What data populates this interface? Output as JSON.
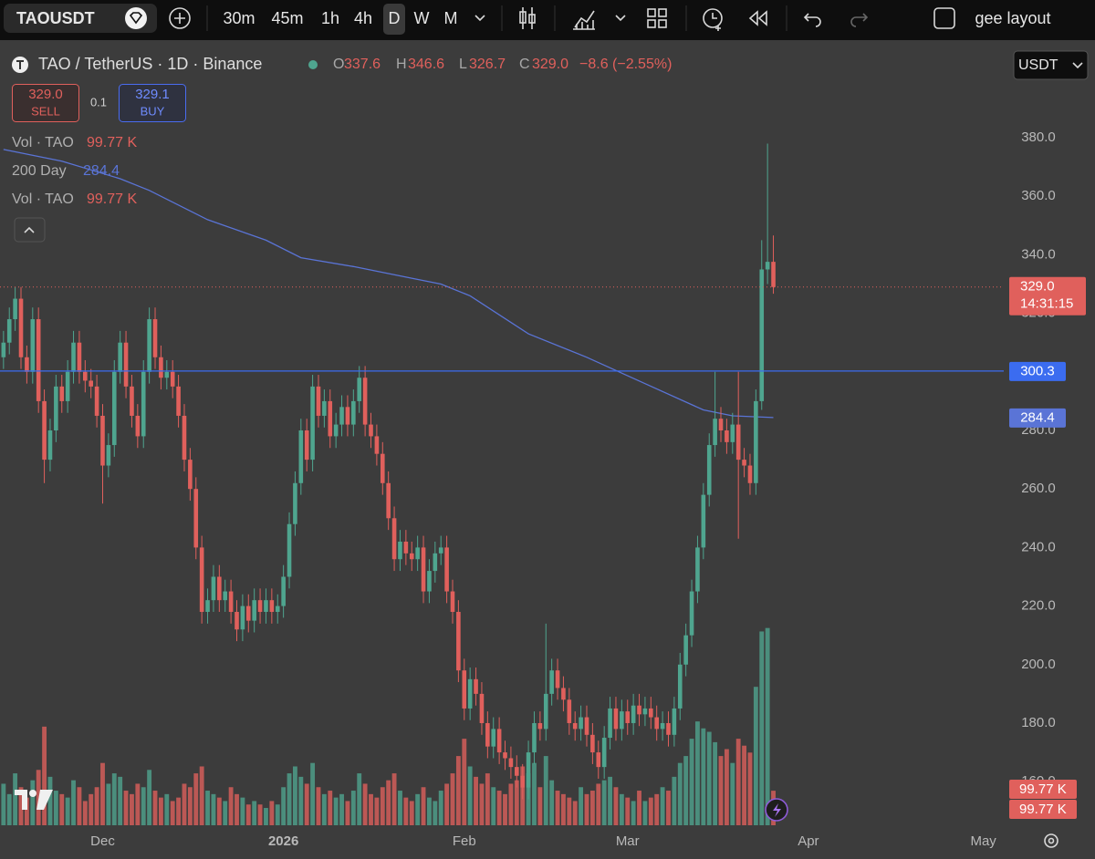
{
  "toolbar": {
    "symbol": "TAOUSDT",
    "intervals": [
      "30m",
      "45m",
      "1h",
      "4h",
      "D",
      "W",
      "M"
    ],
    "layout": "gee layout"
  },
  "header": {
    "title": "TAO / TetherUS · 1D · Binance",
    "o_label": "O",
    "h_label": "H",
    "l_label": "L",
    "c_label": "C",
    "change": "−8.6 (−2.55%)",
    "sell_price": "329.0",
    "sell": "SELL",
    "quantity": "0.1",
    "buy_price": "329.1",
    "buy": "BUY",
    "currency": "USDT"
  },
  "legend": [
    {
      "name": "Vol · TAO",
      "value": "99.77 K"
    },
    {
      "name": "Vol · TAO",
      "value": "99.77 K"
    }
  ],
  "chart_data": {
    "type": "candlestick",
    "up_color": "#4fa58f",
    "down_color": "#e0605c",
    "open": [
      305,
      310,
      318,
      325,
      305,
      300,
      318,
      290,
      270,
      280,
      295,
      290,
      300,
      310,
      300,
      297,
      295,
      285,
      268,
      275,
      300,
      310,
      295,
      285,
      278,
      300,
      318,
      305,
      298,
      300,
      295,
      285,
      270,
      260,
      240,
      218,
      222,
      230,
      222,
      225,
      218,
      212,
      220,
      215,
      222,
      218,
      222,
      218,
      220,
      230,
      248,
      262,
      280,
      270,
      295,
      285,
      290,
      278,
      282,
      288,
      282,
      290,
      298,
      282,
      278,
      272,
      262,
      250,
      236,
      242,
      238,
      236,
      240,
      225,
      232,
      238,
      240,
      225,
      218,
      198,
      185,
      195,
      190,
      180,
      172,
      178,
      170,
      168,
      165,
      162,
      158,
      170,
      180,
      178,
      190,
      198,
      192,
      188,
      180,
      178,
      182,
      176,
      170,
      165,
      175,
      185,
      178,
      184,
      180,
      186,
      183,
      185,
      182,
      178,
      180,
      176,
      185,
      200,
      210,
      225,
      240,
      258,
      275,
      284,
      280,
      276,
      282,
      270,
      268,
      262,
      290,
      335,
      337.6
    ],
    "high": [
      314,
      322,
      329,
      329,
      309,
      322,
      322,
      294,
      284,
      299,
      299,
      304,
      314,
      314,
      304,
      301,
      299,
      289,
      279,
      304,
      314,
      314,
      299,
      289,
      304,
      322,
      322,
      309,
      304,
      304,
      299,
      289,
      274,
      264,
      244,
      226,
      234,
      234,
      229,
      229,
      222,
      224,
      224,
      226,
      226,
      226,
      226,
      224,
      234,
      252,
      266,
      284,
      284,
      299,
      299,
      294,
      294,
      286,
      292,
      292,
      294,
      302,
      302,
      286,
      282,
      276,
      266,
      254,
      246,
      246,
      242,
      244,
      244,
      236,
      242,
      244,
      244,
      229,
      222,
      202,
      199,
      199,
      194,
      184,
      182,
      182,
      174,
      172,
      169,
      166,
      174,
      184,
      184,
      214,
      202,
      202,
      196,
      192,
      184,
      186,
      186,
      180,
      174,
      179,
      189,
      189,
      188,
      188,
      190,
      190,
      189,
      189,
      186,
      184,
      184,
      189,
      204,
      214,
      229,
      244,
      262,
      279,
      300,
      288,
      284,
      286,
      300,
      274,
      272,
      294,
      345,
      378,
      346.6
    ],
    "low": [
      301,
      306,
      314,
      301,
      296,
      296,
      286,
      262,
      266,
      276,
      286,
      286,
      296,
      296,
      293,
      291,
      281,
      255,
      264,
      271,
      296,
      291,
      281,
      274,
      274,
      296,
      301,
      294,
      294,
      291,
      281,
      266,
      256,
      236,
      214,
      214,
      218,
      218,
      218,
      214,
      208,
      208,
      211,
      211,
      214,
      214,
      214,
      214,
      216,
      226,
      244,
      258,
      266,
      266,
      281,
      281,
      274,
      274,
      278,
      278,
      278,
      286,
      278,
      274,
      268,
      258,
      246,
      232,
      232,
      234,
      232,
      232,
      221,
      221,
      228,
      234,
      221,
      214,
      194,
      181,
      181,
      186,
      176,
      168,
      168,
      166,
      164,
      161,
      158,
      154,
      154,
      166,
      174,
      174,
      186,
      188,
      184,
      176,
      174,
      174,
      172,
      166,
      161,
      161,
      171,
      174,
      174,
      176,
      176,
      179,
      179,
      178,
      174,
      174,
      172,
      172,
      181,
      196,
      206,
      221,
      236,
      254,
      271,
      276,
      272,
      272,
      243,
      264,
      258,
      258,
      287,
      330,
      326.7
    ],
    "close": [
      310,
      318,
      325,
      305,
      300,
      318,
      290,
      270,
      280,
      295,
      290,
      300,
      310,
      300,
      297,
      295,
      285,
      268,
      275,
      300,
      310,
      295,
      285,
      278,
      300,
      318,
      305,
      298,
      300,
      295,
      285,
      270,
      260,
      240,
      218,
      222,
      230,
      222,
      225,
      218,
      212,
      220,
      215,
      222,
      218,
      222,
      218,
      220,
      230,
      248,
      262,
      280,
      270,
      295,
      285,
      290,
      278,
      282,
      288,
      282,
      290,
      298,
      282,
      278,
      272,
      262,
      250,
      236,
      242,
      238,
      236,
      240,
      225,
      232,
      238,
      240,
      225,
      218,
      198,
      185,
      195,
      190,
      180,
      172,
      178,
      170,
      168,
      165,
      162,
      158,
      170,
      180,
      178,
      190,
      198,
      192,
      188,
      180,
      178,
      182,
      176,
      170,
      165,
      175,
      185,
      178,
      184,
      180,
      186,
      183,
      185,
      182,
      178,
      180,
      176,
      185,
      200,
      210,
      225,
      240,
      258,
      275,
      284,
      280,
      276,
      282,
      270,
      268,
      262,
      290,
      335,
      337.6,
      329
    ],
    "volume": [
      120000,
      90000,
      150000,
      110000,
      80000,
      130000,
      160000,
      285000,
      140000,
      100000,
      90000,
      80000,
      130000,
      110000,
      70000,
      90000,
      110000,
      180000,
      120000,
      150000,
      140000,
      100000,
      90000,
      120000,
      110000,
      160000,
      100000,
      80000,
      90000,
      70000,
      80000,
      120000,
      110000,
      150000,
      170000,
      100000,
      90000,
      80000,
      70000,
      110000,
      90000,
      80000,
      60000,
      70000,
      60000,
      50000,
      70000,
      60000,
      110000,
      150000,
      170000,
      140000,
      120000,
      180000,
      110000,
      90000,
      100000,
      80000,
      90000,
      70000,
      100000,
      150000,
      120000,
      90000,
      80000,
      110000,
      130000,
      150000,
      100000,
      80000,
      70000,
      90000,
      110000,
      80000,
      70000,
      100000,
      120000,
      150000,
      200000,
      250000,
      170000,
      140000,
      120000,
      150000,
      110000,
      100000,
      90000,
      120000,
      130000,
      170000,
      150000,
      180000,
      110000,
      200000,
      130000,
      100000,
      90000,
      80000,
      70000,
      110000,
      90000,
      100000,
      120000,
      130000,
      140000,
      110000,
      90000,
      80000,
      70000,
      100000,
      70000,
      80000,
      90000,
      110000,
      100000,
      140000,
      180000,
      200000,
      250000,
      300000,
      280000,
      270000,
      240000,
      200000,
      220000,
      180000,
      250000,
      230000,
      210000,
      400000,
      560000,
      570000,
      99770
    ],
    "volume_ylim": [
      0,
      830000
    ],
    "xlim": [
      -0.6,
      171.5
    ],
    "xticks": [
      {
        "value": 17,
        "label": "Dec"
      },
      {
        "value": 48,
        "label": "2026"
      },
      {
        "value": 79,
        "label": "Feb"
      },
      {
        "value": 107,
        "label": "Mar"
      },
      {
        "value": 138,
        "label": "Apr"
      },
      {
        "value": 168,
        "label": "May"
      }
    ],
    "ylim": [
      145.1,
      412.1
    ],
    "yticks": [
      {
        "value": 160,
        "label": "160.0"
      },
      {
        "value": 180,
        "label": "180.0"
      },
      {
        "value": 200,
        "label": "200.0"
      },
      {
        "value": 220,
        "label": "220.0"
      },
      {
        "value": 240,
        "label": "240.0"
      },
      {
        "value": 260,
        "label": "260.0"
      },
      {
        "value": 280,
        "label": "280.0"
      },
      {
        "value": 300,
        "label": "300.0"
      },
      {
        "value": 320,
        "label": "320.0"
      },
      {
        "value": 340,
        "label": "340.0"
      },
      {
        "value": 360,
        "label": "360.0"
      },
      {
        "value": 380,
        "label": "380.0"
      }
    ],
    "grid": false,
    "ma": {
      "name": "200 Day",
      "color": "#5a74d6",
      "x": [
        0,
        10,
        20,
        25,
        35,
        45,
        51,
        60,
        70,
        75,
        80,
        90,
        100,
        110,
        120,
        125,
        132
      ],
      "values": [
        376,
        372,
        366,
        362,
        352,
        345,
        339,
        336,
        332,
        330,
        326,
        313,
        305,
        296,
        287,
        285,
        284.4
      ]
    },
    "hlines": [
      {
        "value": 300.3,
        "label": "300.3",
        "color": "#3b6cf0"
      }
    ],
    "price_line": {
      "value": 329,
      "label": "329.0",
      "countdown": "14:31:15",
      "color": "#e0605c"
    }
  }
}
